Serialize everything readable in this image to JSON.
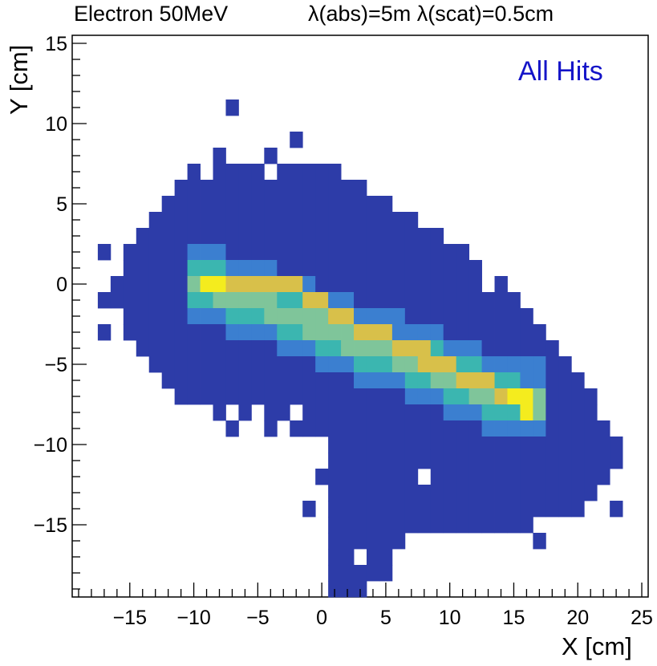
{
  "chart_data": {
    "type": "heatmap",
    "title_left": "Electron 50MeV",
    "title_right": "λ(abs)=5m  λ(scat)=0.5cm",
    "annotation": "All Hits",
    "xlabel": "X [cm]",
    "ylabel": "Y [cm]",
    "xlim": [
      -19.5,
      25.5
    ],
    "ylim": [
      -19.5,
      15.5
    ],
    "xticks": [
      -15,
      -10,
      -5,
      0,
      5,
      10,
      15,
      20,
      25
    ],
    "yticks": [
      -15,
      -10,
      -5,
      0,
      5,
      10,
      15
    ],
    "bin_size": 1,
    "grid": false,
    "colors": {
      "background": "#2d3ca8",
      "low": "#3b7fd0",
      "mid": "#3bb6b0",
      "midhigh": "#7fc59a",
      "high": "#d8c04a",
      "peak": "#f4ec1e",
      "annotation": "#1414c8"
    },
    "envelope_rows": [
      {
        "y": 11,
        "x": [
          [
            -7,
            -7
          ]
        ]
      },
      {
        "y": 9,
        "x": [
          [
            -2,
            -2
          ]
        ]
      },
      {
        "y": 8,
        "x": [
          [
            -8,
            -8
          ],
          [
            -4,
            -4
          ]
        ]
      },
      {
        "y": 7,
        "x": [
          [
            -10,
            1
          ]
        ]
      },
      {
        "y": 6,
        "x": [
          [
            -11,
            3
          ]
        ]
      },
      {
        "y": 5,
        "x": [
          [
            -12,
            5
          ]
        ]
      },
      {
        "y": 4,
        "x": [
          [
            -13,
            7
          ]
        ]
      },
      {
        "y": 3,
        "x": [
          [
            -14,
            9
          ]
        ]
      },
      {
        "y": 2,
        "x": [
          [
            -17,
            -17
          ],
          [
            -15,
            11
          ]
        ]
      },
      {
        "y": 1,
        "x": [
          [
            -15,
            12
          ]
        ]
      },
      {
        "y": 0,
        "x": [
          [
            -16,
            14
          ]
        ]
      },
      {
        "y": -1,
        "x": [
          [
            -17,
            -17
          ],
          [
            -16,
            15
          ]
        ]
      },
      {
        "y": -2,
        "x": [
          [
            -15,
            16
          ]
        ]
      },
      {
        "y": -3,
        "x": [
          [
            -17,
            -17
          ],
          [
            -15,
            17
          ]
        ]
      },
      {
        "y": -4,
        "x": [
          [
            -14,
            18
          ]
        ]
      },
      {
        "y": -5,
        "x": [
          [
            -13,
            19
          ]
        ]
      },
      {
        "y": -6,
        "x": [
          [
            -12,
            20
          ]
        ]
      },
      {
        "y": -7,
        "x": [
          [
            -11,
            21
          ]
        ]
      },
      {
        "y": -8,
        "x": [
          [
            -8,
            21
          ]
        ]
      },
      {
        "y": -9,
        "x": [
          [
            -1,
            22
          ]
        ]
      },
      {
        "y": -10,
        "x": [
          [
            1,
            23
          ]
        ]
      },
      {
        "y": -11,
        "x": [
          [
            1,
            23
          ]
        ]
      },
      {
        "y": -12,
        "x": [
          [
            0,
            22
          ]
        ]
      },
      {
        "y": -13,
        "x": [
          [
            1,
            21
          ]
        ]
      },
      {
        "y": -14,
        "x": [
          [
            1,
            20
          ]
        ]
      },
      {
        "y": -15,
        "x": [
          [
            1,
            17
          ]
        ]
      },
      {
        "y": -16,
        "x": [
          [
            1,
            6
          ]
        ]
      },
      {
        "y": -17,
        "x": [
          [
            1,
            5
          ]
        ]
      },
      {
        "y": -18,
        "x": [
          [
            1,
            4
          ]
        ]
      },
      {
        "y": -19,
        "x": [
          [
            1,
            3
          ]
        ]
      }
    ],
    "envelope_holes": [
      {
        "x": -9,
        "y": 7
      },
      {
        "x": -4,
        "y": 7
      },
      {
        "x": -10,
        "y": -8
      },
      {
        "x": -7,
        "y": -8
      },
      {
        "x": -5,
        "y": -8
      },
      {
        "x": -2,
        "y": -8
      },
      {
        "x": 13,
        "y": 0
      },
      {
        "x": 8,
        "y": -12
      },
      {
        "x": 17,
        "y": -15
      },
      {
        "x": 3,
        "y": -17
      }
    ],
    "envelope_extra": [
      {
        "x": -7,
        "y": -9
      },
      {
        "x": -4,
        "y": -9
      },
      {
        "x": -2,
        "y": -9
      },
      {
        "x": -1,
        "y": -14
      },
      {
        "x": 16,
        "y": -15
      },
      {
        "x": 14,
        "y": -15
      },
      {
        "x": 17,
        "y": -16
      },
      {
        "x": 7,
        "y": -15
      },
      {
        "x": 5,
        "y": -18
      },
      {
        "x": 20,
        "y": -14
      },
      {
        "x": 23,
        "y": -14
      }
    ],
    "band": {
      "start": [
        -9,
        0
      ],
      "end": [
        16,
        -7.5
      ],
      "half_width_bins": 2,
      "peaks": [
        {
          "x": -9,
          "y": 0
        },
        {
          "x": -8,
          "y": 0
        },
        {
          "x": 15,
          "y": -7
        },
        {
          "x": 16,
          "y": -7
        },
        {
          "x": 16,
          "y": -8
        }
      ],
      "high": [
        {
          "x": -7,
          "y": 0
        },
        {
          "x": -6,
          "y": 0
        },
        {
          "x": -5,
          "y": 0
        },
        {
          "x": -4,
          "y": 0
        },
        {
          "x": -3,
          "y": 0
        },
        {
          "x": -2,
          "y": 0
        },
        {
          "x": -1,
          "y": -1
        },
        {
          "x": 0,
          "y": -1
        },
        {
          "x": 1,
          "y": -2
        },
        {
          "x": 2,
          "y": -2
        },
        {
          "x": 3,
          "y": -3
        },
        {
          "x": 4,
          "y": -3
        },
        {
          "x": 5,
          "y": -3
        },
        {
          "x": 6,
          "y": -4
        },
        {
          "x": 7,
          "y": -4
        },
        {
          "x": 8,
          "y": -4
        },
        {
          "x": 8,
          "y": -5
        },
        {
          "x": 9,
          "y": -5
        },
        {
          "x": 10,
          "y": -5
        },
        {
          "x": 11,
          "y": -6
        },
        {
          "x": 12,
          "y": -6
        },
        {
          "x": 13,
          "y": -6
        },
        {
          "x": 14,
          "y": -7
        }
      ]
    }
  }
}
